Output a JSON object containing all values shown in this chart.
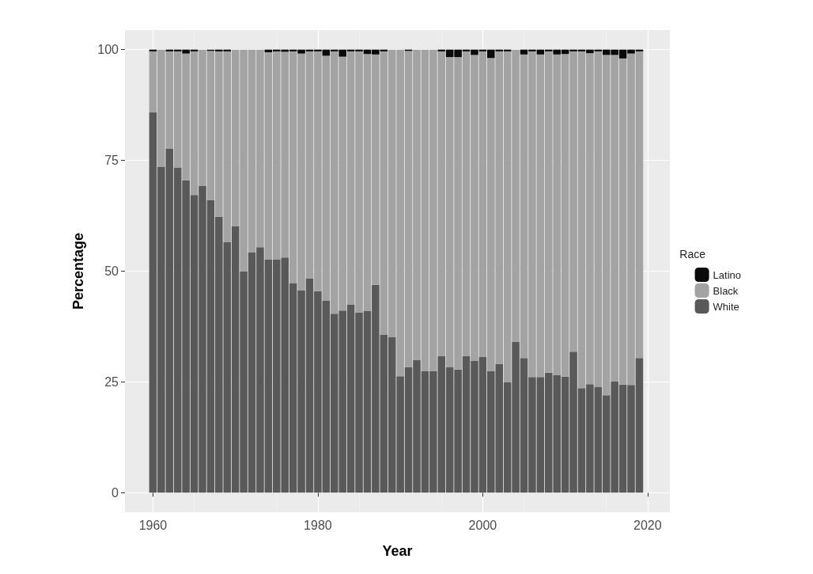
{
  "chart_data": {
    "type": "bar",
    "stacked": true,
    "xlabel": "Year",
    "ylabel": "Percentage",
    "legend_title": "Race",
    "legend": "right",
    "x": [
      1960,
      1961,
      1962,
      1963,
      1964,
      1965,
      1966,
      1967,
      1968,
      1969,
      1970,
      1971,
      1972,
      1973,
      1974,
      1975,
      1976,
      1977,
      1978,
      1979,
      1980,
      1981,
      1982,
      1983,
      1984,
      1985,
      1986,
      1987,
      1988,
      1989,
      1990,
      1991,
      1992,
      1993,
      1994,
      1995,
      1996,
      1997,
      1998,
      1999,
      2000,
      2001,
      2002,
      2003,
      2004,
      2005,
      2006,
      2007,
      2008,
      2009,
      2010,
      2011,
      2012,
      2013,
      2014,
      2015,
      2016,
      2017,
      2018,
      2019
    ],
    "series": [
      {
        "name": "White",
        "color": "#595959",
        "values": [
          85.8,
          73.6,
          77.7,
          73.4,
          70.5,
          67.2,
          69.2,
          66.0,
          62.3,
          56.5,
          60.1,
          50.0,
          54.2,
          55.4,
          52.7,
          52.7,
          53.1,
          47.3,
          45.7,
          48.4,
          45.5,
          43.4,
          40.4,
          41.1,
          42.5,
          40.7,
          41.0,
          46.9,
          35.7,
          35.1,
          26.3,
          28.4,
          29.9,
          27.5,
          27.4,
          30.8,
          28.4,
          27.8,
          30.8,
          29.8,
          30.6,
          27.4,
          29.0,
          24.9,
          34.0,
          30.4,
          26.1,
          26.1,
          27.1,
          26.5,
          26.2,
          31.8,
          23.6,
          24.5,
          23.9,
          22.0,
          25.1,
          24.4,
          24.3,
          30.4
        ]
      },
      {
        "name": "Black",
        "color": "#a3a3a3",
        "values": [
          13.8,
          26.4,
          21.9,
          26.2,
          28.6,
          32.4,
          30.8,
          33.7,
          37.3,
          43.1,
          39.9,
          50.0,
          45.8,
          44.6,
          46.7,
          46.9,
          46.4,
          52.3,
          53.4,
          51.2,
          54.1,
          55.2,
          59.2,
          57.3,
          57.1,
          58.9,
          58.0,
          52.0,
          63.9,
          64.9,
          73.7,
          71.3,
          70.1,
          72.5,
          72.6,
          68.8,
          69.9,
          70.5,
          68.8,
          69.0,
          69.0,
          70.7,
          70.6,
          74.7,
          66.0,
          68.5,
          73.5,
          72.8,
          72.5,
          72.4,
          72.8,
          67.8,
          76.0,
          74.7,
          75.7,
          76.8,
          73.7,
          73.6,
          74.8,
          69.2
        ]
      },
      {
        "name": "Latino",
        "color": "#0a0a0a",
        "values": [
          0.4,
          0,
          0.4,
          0.4,
          0.9,
          0.4,
          0,
          0.3,
          0.4,
          0.4,
          0,
          0,
          0,
          0,
          0.6,
          0.4,
          0.5,
          0.4,
          0.9,
          0.4,
          0.4,
          1.4,
          0.4,
          1.6,
          0.4,
          0.4,
          1.0,
          1.1,
          0.4,
          0,
          0,
          0.3,
          0,
          0,
          0,
          0.4,
          1.7,
          1.7,
          0.4,
          1.2,
          0.4,
          1.9,
          0.4,
          0.4,
          0,
          1.1,
          0.4,
          1.1,
          0.4,
          1.1,
          1.0,
          0.4,
          0.4,
          0.8,
          0.4,
          1.2,
          1.2,
          2.0,
          0.9,
          0.4
        ]
      }
    ],
    "xlim": [
      1956.6,
      2022.7
    ],
    "xticks": [
      1960,
      1980,
      2000,
      2020
    ],
    "ylim": [
      -4.4,
      104.4
    ],
    "yticks": [
      0,
      25,
      50,
      75,
      100
    ],
    "grid": true
  }
}
